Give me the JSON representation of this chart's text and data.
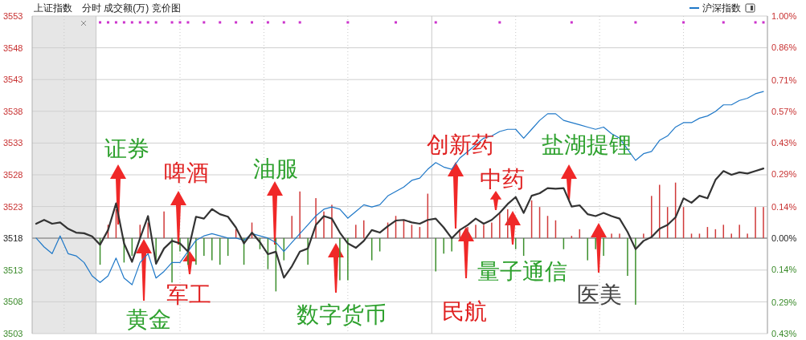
{
  "chart_data": {
    "type": "line",
    "title": "上证指数",
    "subtitle": "分时 成交额(万) 竞价图",
    "categories": [
      null,
      null,
      null,
      null,
      null,
      null,
      null,
      null,
      null,
      null,
      null,
      null,
      null,
      null,
      null,
      null,
      null,
      null,
      null,
      null,
      null,
      null,
      null,
      null,
      null,
      null,
      null,
      null,
      null,
      null,
      null,
      null,
      null,
      null,
      null,
      null,
      null,
      null,
      null,
      null,
      null,
      null,
      null,
      null,
      null,
      null,
      null,
      null,
      null,
      null,
      null,
      null,
      null,
      null,
      null,
      null,
      null,
      null,
      null,
      null,
      null,
      null,
      null,
      null,
      null,
      null,
      null,
      null,
      null,
      null,
      null,
      null,
      null,
      null,
      null,
      null,
      null,
      null,
      null,
      null,
      null,
      null,
      null,
      null,
      null,
      null,
      null,
      null,
      null,
      null,
      null,
      null
    ],
    "series": [
      {
        "type": "bar",
        "axis": "y2",
        "values": [
          null,
          null,
          null,
          null,
          null,
          null,
          null,
          null,
          -0.12,
          0.06,
          0.13,
          -0.11,
          -0.08,
          0.06,
          0.07,
          -0.1,
          0.12,
          -0.2,
          -0.06,
          -0.12,
          -0.12,
          -0.08,
          -0.1,
          -0.12,
          -0.08,
          0.04,
          -0.12,
          0.07,
          -0.05,
          -0.14,
          -0.24,
          -0.1,
          0.1,
          0.21,
          -0.12,
          0.18,
          0.12,
          0.15,
          -0.19,
          -0.19,
          0.06,
          0.08,
          -0.1,
          -0.06,
          0.07,
          0.1,
          0.08,
          0.06,
          0.05,
          0.2,
          -0.15,
          -0.07,
          -0.06,
          0.04,
          0.05,
          0.06,
          0.06,
          0.07,
          0.11,
          0.13,
          -0.05,
          -0.08,
          0.17,
          0.14,
          0.1,
          0.08,
          -0.05,
          0.01,
          0.04,
          -0.1,
          -0.05,
          -0.08,
          0.02,
          0.02,
          -0.17,
          -0.3,
          0.02,
          0.19,
          0.24,
          0.14,
          0.25,
          0.14,
          0.02,
          0.02,
          0.05,
          0.04,
          0.06,
          0.02,
          0.06,
          0.02,
          0.14,
          0.14
        ],
        "colors": [
          null,
          null,
          null,
          null,
          null,
          null,
          null,
          null,
          "#3c8f2c",
          "#d03a3a",
          "#d03a3a",
          "#3c8f2c",
          "#3c8f2c",
          "#d03a3a",
          "#d03a3a",
          "#3c8f2c",
          "#d03a3a",
          "#3c8f2c",
          "#3c8f2c",
          "#3c8f2c",
          "#3c8f2c",
          "#3c8f2c",
          "#3c8f2c",
          "#3c8f2c",
          "#3c8f2c",
          "#d03a3a",
          "#3c8f2c",
          "#d03a3a",
          "#3c8f2c",
          "#3c8f2c",
          "#3c8f2c",
          "#3c8f2c",
          "#d03a3a",
          "#d03a3a",
          "#3c8f2c",
          "#d03a3a",
          "#d03a3a",
          "#d03a3a",
          "#3c8f2c",
          "#3c8f2c",
          "#d03a3a",
          "#d03a3a",
          "#3c8f2c",
          "#3c8f2c",
          "#d03a3a",
          "#d03a3a",
          "#d03a3a",
          "#d03a3a",
          "#d03a3a",
          "#d03a3a",
          "#3c8f2c",
          "#3c8f2c",
          "#3c8f2c",
          "#d03a3a",
          "#d03a3a",
          "#d03a3a",
          "#d03a3a",
          "#d03a3a",
          "#d03a3a",
          "#d03a3a",
          "#3c8f2c",
          "#3c8f2c",
          "#d03a3a",
          "#d03a3a",
          "#d03a3a",
          "#d03a3a",
          "#3c8f2c",
          "#d03a3a",
          "#d03a3a",
          "#3c8f2c",
          "#3c8f2c",
          "#3c8f2c",
          "#d03a3a",
          "#d03a3a",
          "#3c8f2c",
          "#3c8f2c",
          "#d03a3a",
          "#d03a3a",
          "#d03a3a",
          "#d03a3a",
          "#d03a3a",
          "#d03a3a",
          "#d03a3a",
          "#d03a3a",
          "#d03a3a",
          "#d03a3a",
          "#d03a3a",
          "#d03a3a",
          "#d03a3a",
          "#d03a3a",
          "#d03a3a",
          "#d03a3a"
        ]
      },
      {
        "type": "line",
        "axis": "y2",
        "name": "沪深指数",
        "color": "#1f78c8",
        "values": [
          0,
          -0.04,
          -0.07,
          0.01,
          -0.07,
          -0.08,
          -0.11,
          -0.17,
          -0.2,
          -0.17,
          -0.09,
          -0.18,
          -0.21,
          -0.11,
          -0.07,
          -0.18,
          -0.15,
          -0.11,
          -0.11,
          -0.06,
          -0.01,
          0.01,
          0.02,
          0.01,
          0,
          0,
          -0.01,
          0.02,
          0.01,
          0,
          -0.02,
          -0.06,
          -0.02,
          0.02,
          0.06,
          0.1,
          0.13,
          0.14,
          0.13,
          0.09,
          0.12,
          0.15,
          0.14,
          0.15,
          0.19,
          0.21,
          0.23,
          0.26,
          0.27,
          0.31,
          0.34,
          0.32,
          0.31,
          0.36,
          0.39,
          0.42,
          0.45,
          0.46,
          0.48,
          0.49,
          0.49,
          0.45,
          0.49,
          0.53,
          0.56,
          0.56,
          0.53,
          0.52,
          0.51,
          0.5,
          0.49,
          0.5,
          0.47,
          0.45,
          0.4,
          0.35,
          0.38,
          0.39,
          0.44,
          0.46,
          0.5,
          0.52,
          0.52,
          0.54,
          0.55,
          0.57,
          0.6,
          0.6,
          0.62,
          0.63,
          0.65,
          0.66
        ]
      },
      {
        "color": "#333333",
        "values": [
          3520.3,
          3520.9,
          3520.3,
          3520.5,
          3519.5,
          3518.9,
          3518.8,
          3518.3,
          3517,
          3519.3,
          3523.5,
          3517.2,
          3514.3,
          3518,
          3521.5,
          3514,
          3516.4,
          3517.6,
          3517.2,
          3515.9,
          3521.4,
          3521.1,
          3522.6,
          3521.8,
          3521.4,
          3519.7,
          3517.2,
          3518.9,
          3517.4,
          3515.5,
          3515.9,
          3511.8,
          3513.6,
          3515.9,
          3516.4,
          3520.1,
          3521.5,
          3521.1,
          3518.9,
          3517.2,
          3516.5,
          3517.6,
          3519.3,
          3518.9,
          3519.9,
          3520.8,
          3520.9,
          3520.5,
          3520.3,
          3520.9,
          3521.1,
          3519.7,
          3518,
          3519.3,
          3520.1,
          3521.1,
          3520.3,
          3520.9,
          3522,
          3523.4,
          3524.5,
          3522,
          3524.7,
          3525.1,
          3525.9,
          3525.8,
          3525.9,
          3523,
          3523.2,
          3521.8,
          3521.5,
          3522,
          3521.5,
          3521.1,
          3519,
          3516.3,
          3517.6,
          3518.2,
          3519.5,
          3520.1,
          3521.3,
          3524.3,
          3523.6,
          3524.7,
          3524.3,
          3527.2,
          3528.6,
          3528,
          3528.4,
          3528.2,
          3528.6,
          3529
        ]
      },
      {
        "type": "scatter",
        "color": "#cc33cc",
        "marker": "square",
        "values": [
          null,
          null,
          null,
          null,
          null,
          null,
          null,
          null,
          3552,
          3552,
          3552,
          3552,
          3552,
          3552,
          3552,
          3552,
          null,
          3552,
          3552,
          3552,
          null,
          3552,
          null,
          3552,
          null,
          3552,
          null,
          3552,
          null,
          3552,
          null,
          3552,
          null,
          3552,
          null,
          null,
          null,
          null,
          null,
          3552,
          null,
          null,
          null,
          null,
          null,
          3552,
          null,
          null,
          null,
          null,
          3552,
          null,
          null,
          null,
          null,
          null,
          null,
          null,
          3552,
          null,
          null,
          null,
          null,
          null,
          null,
          null,
          null,
          3552,
          null,
          null,
          null,
          null,
          null,
          null,
          null,
          3552,
          null,
          null,
          null,
          null,
          null,
          3552,
          null,
          null,
          null,
          null,
          3552,
          null,
          null,
          null,
          3552,
          3552
        ]
      }
    ],
    "ylim": [
      3503,
      3553
    ],
    "yticks": [
      3503,
      3508,
      3513,
      3518,
      3523,
      3528,
      3533,
      3538,
      3543,
      3548,
      3553
    ],
    "y2lim": [
      -0.43,
      1.0
    ],
    "y2ticks": [
      {
        "value": -0.43,
        "label": "0.43%"
      },
      {
        "value": -0.29,
        "label": "0.29%"
      },
      {
        "value": -0.14,
        "label": "0.14%"
      },
      {
        "value": 0,
        "label": "0.00%"
      },
      {
        "value": 0.14,
        "label": "0.14%"
      },
      {
        "value": 0.29,
        "label": "0.29%"
      },
      {
        "value": 0.43,
        "label": "0.43%"
      },
      {
        "value": 0.57,
        "label": "0.57%"
      },
      {
        "value": 0.71,
        "label": "0.71%"
      },
      {
        "value": 0.86,
        "label": "0.86%"
      },
      {
        "value": 1.0,
        "label": "1.00%"
      }
    ],
    "ref_lines": [
      {
        "axis": "y2",
        "value": 0,
        "color": "#a8a8a8"
      }
    ],
    "grid": true,
    "legend": "top right",
    "annotations": [
      "证券",
      "啤酒",
      "黄金",
      "军工",
      "油服",
      "数字货币",
      "创新药",
      "中药",
      "民航",
      "量子通信",
      "盐湖提锂",
      "医美"
    ]
  }
}
